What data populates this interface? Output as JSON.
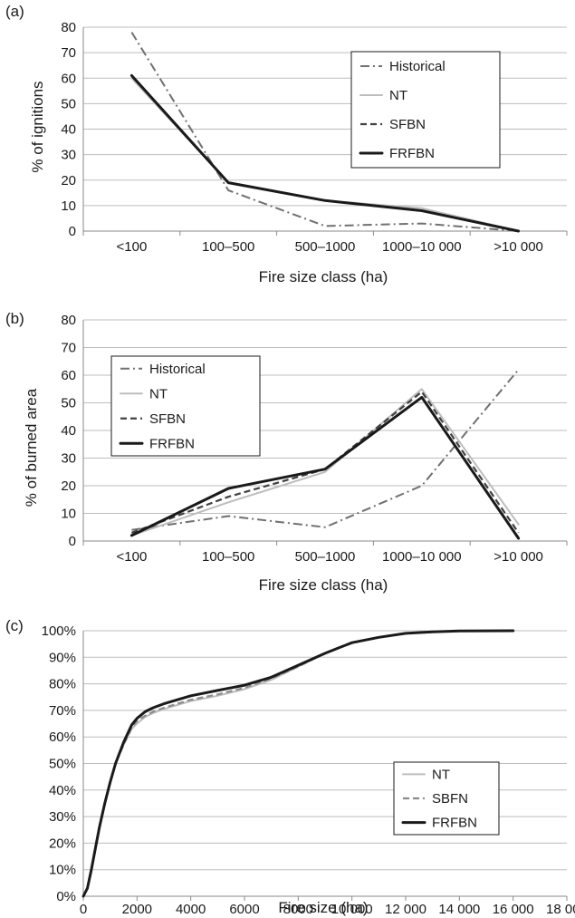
{
  "chart_data": [
    {
      "panel": "(a)",
      "type": "line",
      "xlabel": "Fire size class (ha)",
      "ylabel": "% of ignitions",
      "ylim": [
        0,
        80
      ],
      "yticks": [
        "0",
        "10",
        "20",
        "30",
        "40",
        "50",
        "60",
        "70",
        "80"
      ],
      "categories": [
        "<100",
        "100–500",
        "500–1000",
        "1000–10 000",
        ">10 000"
      ],
      "grid": true,
      "legend_position": "top-right",
      "series": [
        {
          "name": "Historical",
          "values": [
            78,
            16,
            2,
            3,
            0
          ],
          "color": "#707070",
          "style": "dashdot"
        },
        {
          "name": "NT",
          "values": [
            60,
            19,
            12,
            9,
            0
          ],
          "color": "#bdbdbd",
          "style": "solid"
        },
        {
          "name": "SFBN",
          "values": [
            61,
            19,
            12,
            8,
            0
          ],
          "color": "#404040",
          "style": "dashed"
        },
        {
          "name": "FRFBN",
          "values": [
            61,
            19,
            12,
            8,
            0
          ],
          "color": "#1a1a1a",
          "style": "solid-thick"
        }
      ]
    },
    {
      "panel": "(b)",
      "type": "line",
      "xlabel": "Fire size class (ha)",
      "ylabel": "% of burned area",
      "ylim": [
        0,
        80
      ],
      "yticks": [
        "0",
        "10",
        "20",
        "30",
        "40",
        "50",
        "60",
        "70",
        "80"
      ],
      "categories": [
        "<100",
        "100–500",
        "500–1000",
        "1000–10 000",
        ">10 000"
      ],
      "grid": true,
      "legend_position": "top-left",
      "series": [
        {
          "name": "Historical",
          "values": [
            4,
            9,
            5,
            20,
            62
          ],
          "color": "#707070",
          "style": "dashdot"
        },
        {
          "name": "NT",
          "values": [
            2,
            14,
            25,
            55,
            6
          ],
          "color": "#bdbdbd",
          "style": "solid"
        },
        {
          "name": "SFBN",
          "values": [
            3,
            16,
            26,
            54,
            3
          ],
          "color": "#404040",
          "style": "dashed"
        },
        {
          "name": "FRFBN",
          "values": [
            2,
            19,
            26,
            52,
            1
          ],
          "color": "#1a1a1a",
          "style": "solid-thick"
        }
      ]
    },
    {
      "panel": "(c)",
      "type": "line",
      "xlabel": "Fire size (ha)",
      "ylabel": "",
      "xlim": [
        0,
        18000
      ],
      "ylim": [
        0,
        100
      ],
      "xticks": [
        "0",
        "2000",
        "4000",
        "6000",
        "8000",
        "10 000",
        "12 000",
        "14 000",
        "16 000",
        "18 000"
      ],
      "yticks": [
        "0%",
        "10%",
        "20%",
        "30%",
        "40%",
        "50%",
        "60%",
        "70%",
        "80%",
        "90%",
        "100%"
      ],
      "grid": true,
      "legend_position": "bottom-right",
      "series": [
        {
          "name": "NT",
          "color": "#bdbdbd",
          "style": "solid",
          "x": [
            0,
            150,
            300,
            450,
            600,
            800,
            1000,
            1200,
            1500,
            1800,
            2000,
            2300,
            2600,
            3000,
            3500,
            4000,
            5000,
            6000,
            7000,
            8000,
            9000,
            9500,
            10000,
            11000,
            12000,
            13000,
            14000,
            16000
          ],
          "y": [
            0,
            3,
            10,
            18,
            26,
            35,
            43,
            50,
            57,
            63,
            65,
            67.5,
            69,
            70.5,
            72,
            73.5,
            75.5,
            78,
            81.5,
            86.5,
            91.5,
            93.5,
            95.5,
            97.5,
            99,
            99.6,
            99.9,
            100
          ]
        },
        {
          "name": "SBFN",
          "color": "#8c8c8c",
          "style": "dashed",
          "x": [
            0,
            150,
            300,
            450,
            600,
            800,
            1000,
            1200,
            1500,
            1800,
            2000,
            2300,
            2600,
            3000,
            3500,
            4000,
            5000,
            6000,
            7000,
            8000,
            9000,
            9500,
            10000,
            11000,
            12000,
            13000,
            14000,
            16000
          ],
          "y": [
            0,
            3,
            10,
            18,
            26,
            35,
            43,
            50,
            57,
            63.5,
            66,
            68,
            69.5,
            71,
            72.5,
            74,
            76,
            78.5,
            82,
            86.5,
            91.5,
            93.5,
            95.5,
            97.5,
            99,
            99.6,
            99.9,
            100
          ]
        },
        {
          "name": "FRFBN",
          "color": "#1a1a1a",
          "style": "solid-thick",
          "x": [
            0,
            150,
            300,
            450,
            600,
            800,
            1000,
            1200,
            1500,
            1800,
            2000,
            2300,
            2600,
            3000,
            3500,
            4000,
            5000,
            6000,
            7000,
            8000,
            9000,
            9500,
            10000,
            11000,
            12000,
            13000,
            14000,
            16000
          ],
          "y": [
            0,
            3,
            10,
            18,
            26,
            35,
            43,
            50,
            58,
            64.5,
            67,
            69.5,
            71,
            72.5,
            74,
            75.5,
            77.5,
            79.5,
            82.5,
            87,
            91.5,
            93.5,
            95.5,
            97.5,
            99,
            99.6,
            99.9,
            100
          ]
        }
      ]
    }
  ]
}
